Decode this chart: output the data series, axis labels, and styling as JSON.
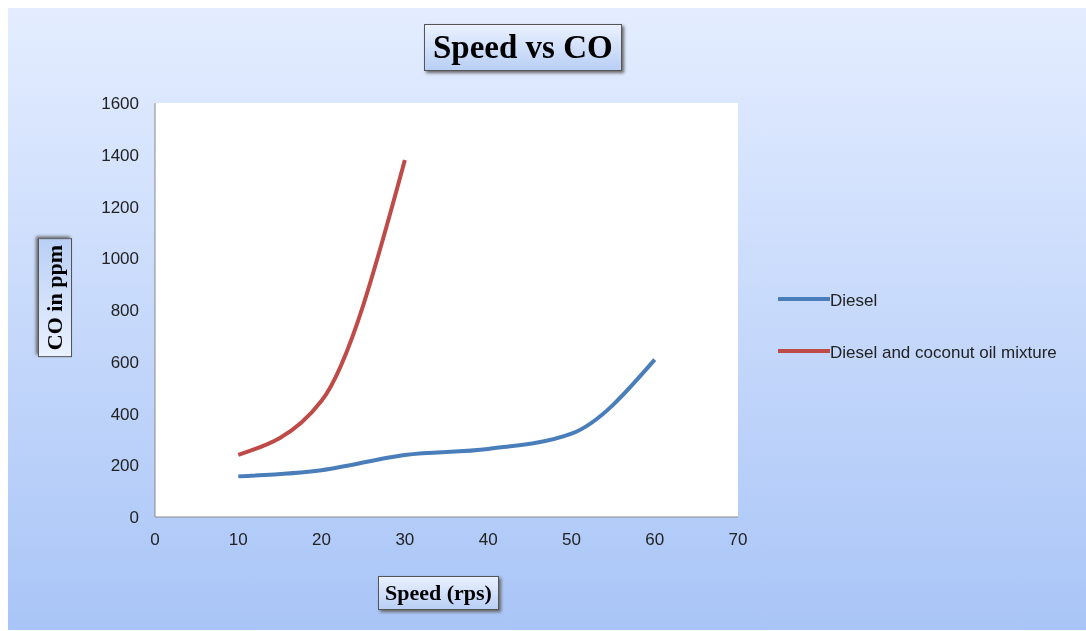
{
  "chart_data": {
    "type": "line",
    "title": "Speed vs CO",
    "xlabel": "Speed (rps)",
    "ylabel": "CO in ppm",
    "x": [
      10,
      20,
      30,
      40,
      50,
      60
    ],
    "series": [
      {
        "name": "Diesel",
        "color": "#4a7ebb",
        "values": [
          157,
          181,
          240,
          263,
          322,
          608
        ]
      },
      {
        "name": "Diesel and coconut oil mixture",
        "color": "#be4b48",
        "x": [
          10,
          20,
          30
        ],
        "values": [
          240,
          449,
          1380
        ]
      }
    ],
    "xlim": [
      0,
      70
    ],
    "xticks": [
      0,
      10,
      20,
      30,
      40,
      50,
      60,
      70
    ],
    "ylim": [
      0,
      1600
    ],
    "yticks": [
      0,
      200,
      400,
      600,
      800,
      1000,
      1200,
      1400,
      1600
    ],
    "grid": false,
    "legend": "right",
    "marker": "none",
    "line_style": "solid"
  }
}
